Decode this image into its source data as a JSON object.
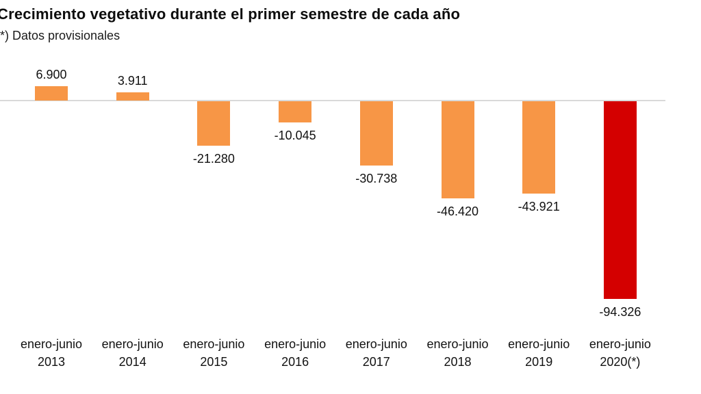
{
  "chart_data": {
    "type": "bar",
    "title": "Crecimiento vegetativo durante el primer semestre de cada año",
    "subtitle": "(*) Datos provisionales",
    "categories": [
      {
        "period": "enero-junio",
        "year": "2013"
      },
      {
        "period": "enero-junio",
        "year": "2014"
      },
      {
        "period": "enero-junio",
        "year": "2015"
      },
      {
        "period": "enero-junio",
        "year": "2016"
      },
      {
        "period": "enero-junio",
        "year": "2017"
      },
      {
        "period": "enero-junio",
        "year": "2018"
      },
      {
        "period": "enero-junio",
        "year": "2019"
      },
      {
        "period": "enero-junio",
        "year": "2020(*)"
      }
    ],
    "values": [
      6900,
      3911,
      -21280,
      -10045,
      -30738,
      -46420,
      -43921,
      -94326
    ],
    "labels": [
      "6.900",
      "3.911",
      "-21.280",
      "-10.045",
      "-30.738",
      "-46.420",
      "-43.921",
      "-94.326"
    ],
    "bar_colors": [
      "#f79646",
      "#f79646",
      "#f79646",
      "#f79646",
      "#f79646",
      "#f79646",
      "#f79646",
      "#d40000"
    ],
    "colors": {
      "default_bar": "#f79646",
      "highlight_bar": "#d40000",
      "zero_line": "#d9d9d9",
      "text": "#111111"
    },
    "ylim": [
      -100000,
      10000
    ],
    "xlabel": "",
    "ylabel": "",
    "grid": false,
    "legend": false,
    "baseline": 0
  }
}
